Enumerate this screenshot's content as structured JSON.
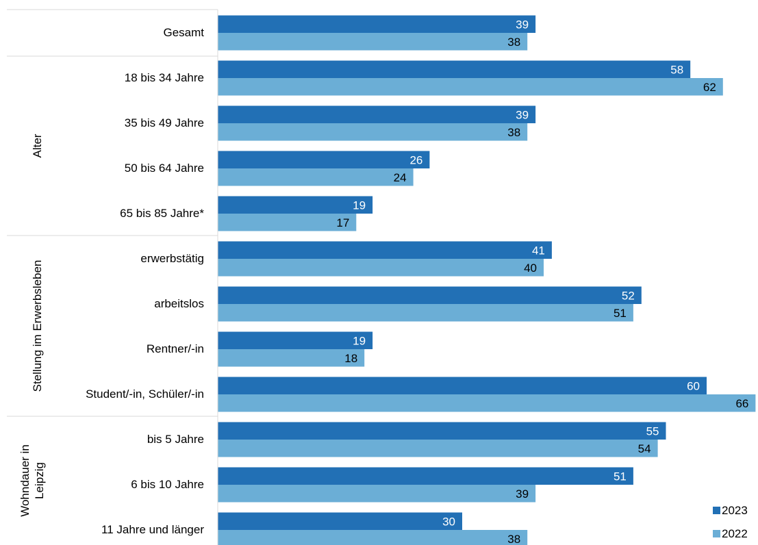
{
  "chart_data": {
    "type": "bar",
    "orientation": "horizontal",
    "title": "",
    "xlabel": "",
    "ylabel": "",
    "xlim": [
      0,
      67
    ],
    "grid": false,
    "legend_position": "bottom-right",
    "categories": [
      "Gesamt",
      "18 bis 34 Jahre",
      "35 bis 49 Jahre",
      "50 bis 64 Jahre",
      "65 bis 85 Jahre*",
      "erwerbstätig",
      "arbeitslos",
      "Rentner/-in",
      "Student/-in, Schüler/-in",
      "bis 5 Jahre",
      "6 bis 10 Jahre",
      "11 Jahre und länger"
    ],
    "groups": [
      {
        "label": "Alter",
        "categories": [
          "18 bis 34 Jahre",
          "35 bis 49 Jahre",
          "50 bis 64 Jahre",
          "65 bis 85 Jahre*"
        ]
      },
      {
        "label": "Stellung im Erwerbsleben",
        "categories": [
          "erwerbstätig",
          "arbeitslos",
          "Rentner/-in",
          "Student/-in, Schüler/-in"
        ]
      },
      {
        "label": "Wohndauer in Leipzig",
        "categories": [
          "bis 5 Jahre",
          "6 bis 10 Jahre",
          "11 Jahre und länger"
        ]
      }
    ],
    "series": [
      {
        "name": "2023",
        "color": "#2270b5",
        "label_color": "#ffffff",
        "values": [
          39,
          58,
          39,
          26,
          19,
          41,
          52,
          19,
          60,
          55,
          51,
          30
        ]
      },
      {
        "name": "2022",
        "color": "#6baed6",
        "label_color": "#000000",
        "values": [
          38,
          62,
          38,
          24,
          17,
          40,
          51,
          18,
          66,
          54,
          39,
          38
        ]
      }
    ]
  }
}
